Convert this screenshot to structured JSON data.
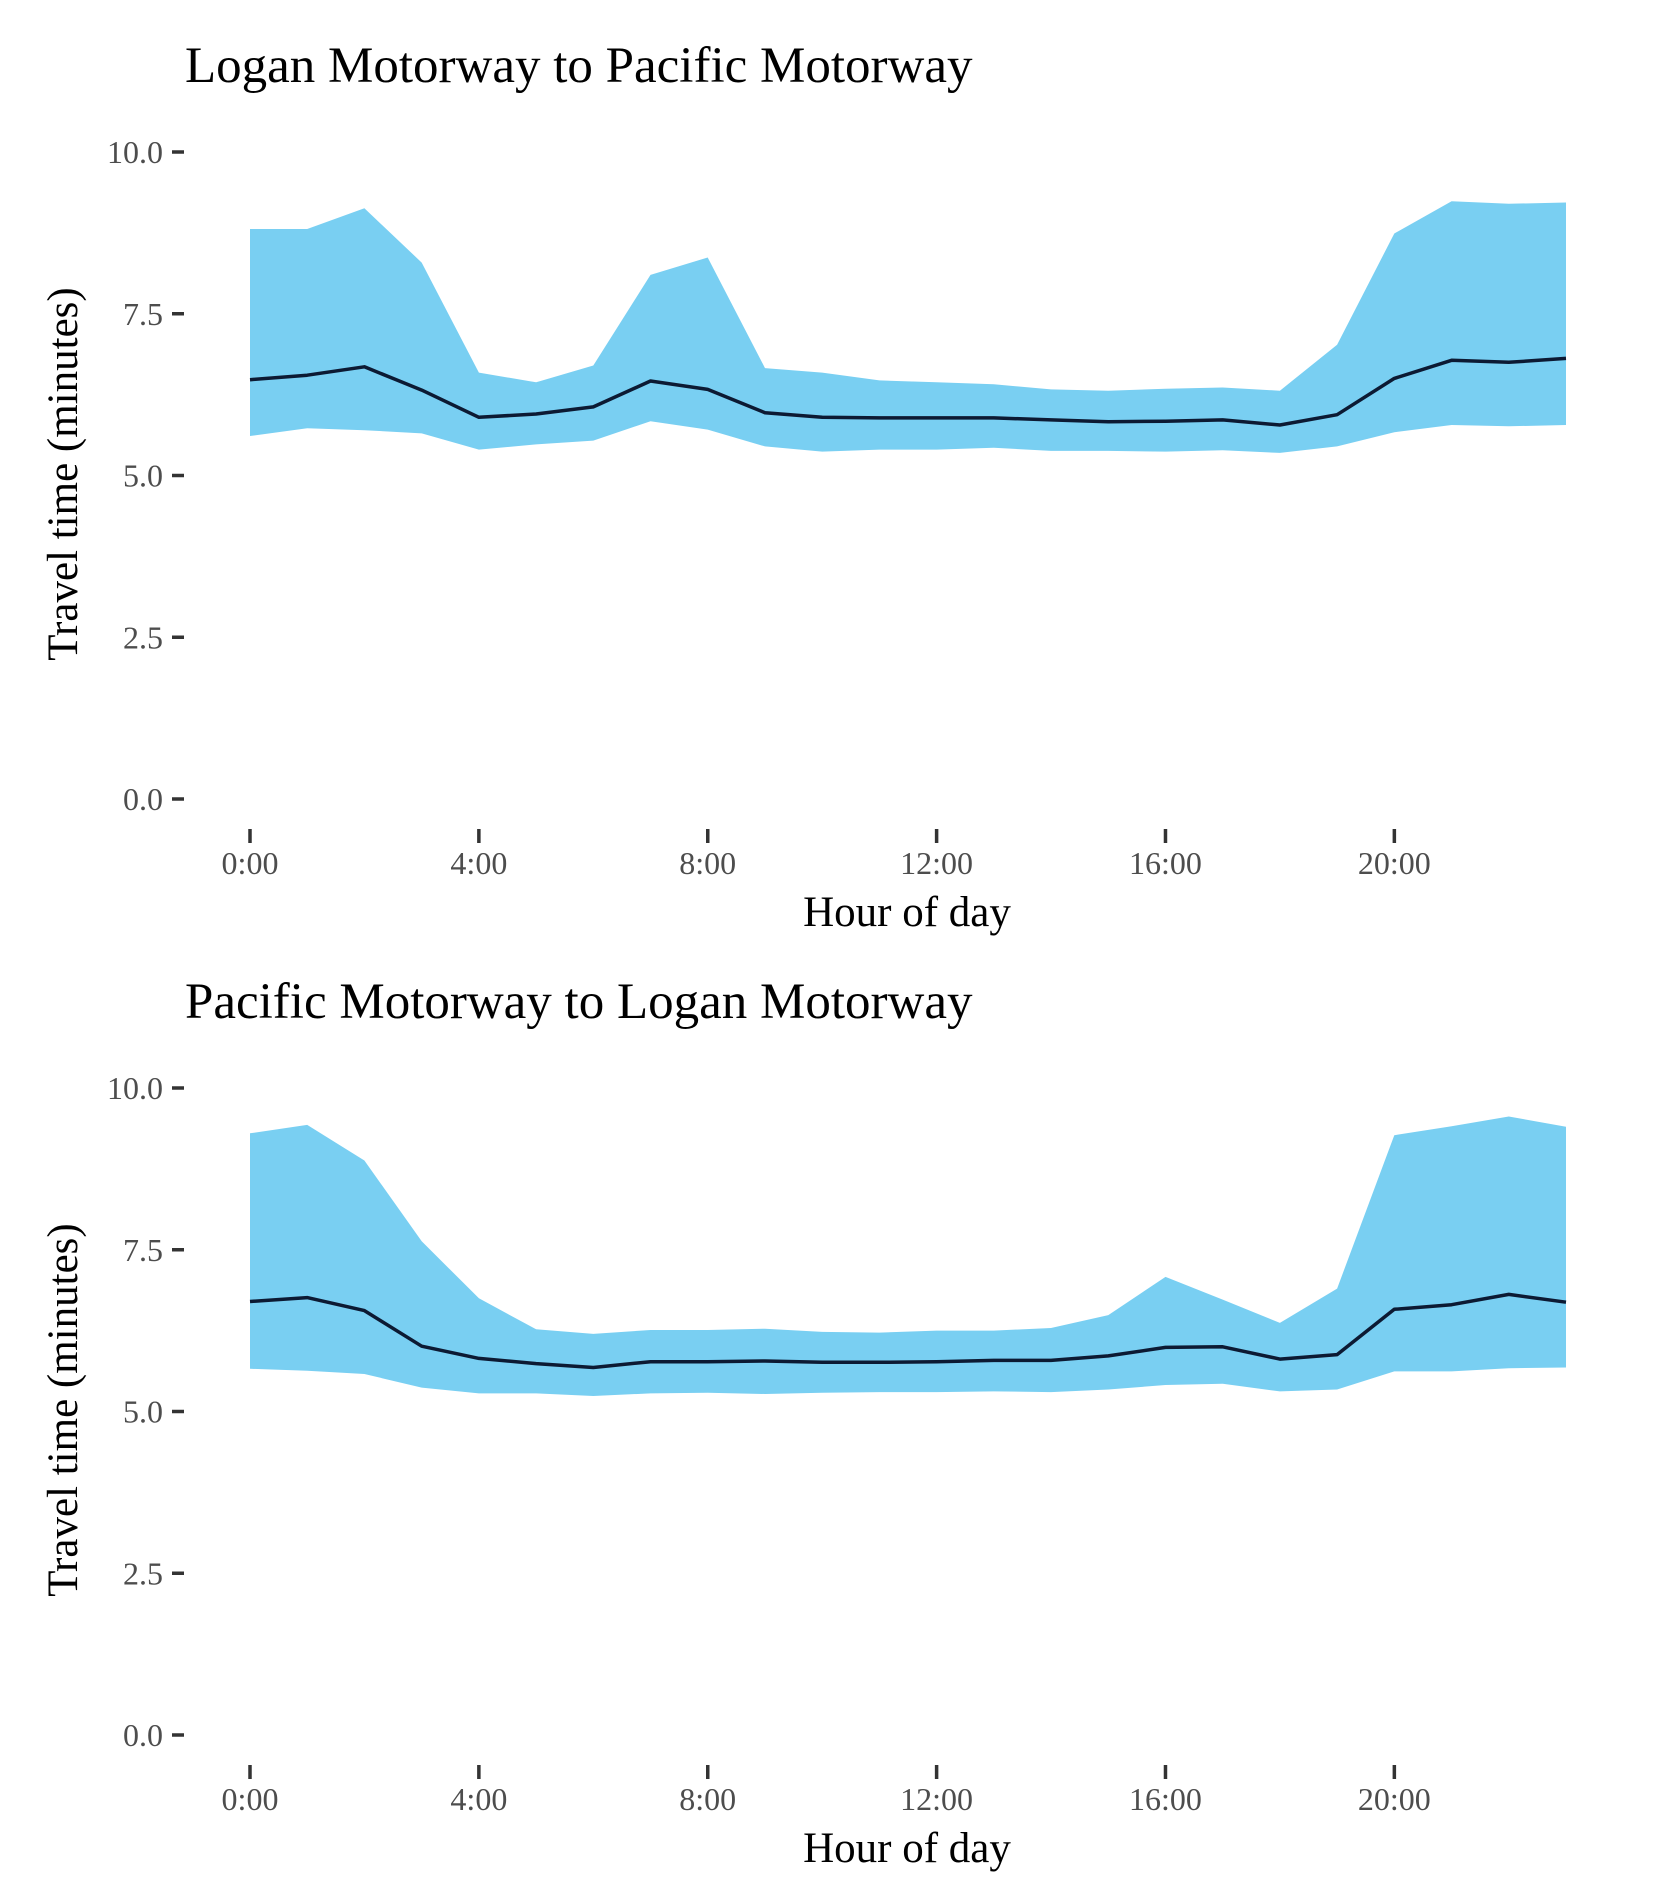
{
  "chart_data": [
    {
      "type": "area",
      "title": "Logan Motorway to Pacific Motorway",
      "xlabel": "Hour of day",
      "ylabel": "Travel time (minutes)",
      "x": [
        0,
        1,
        2,
        3,
        4,
        5,
        6,
        7,
        8,
        9,
        10,
        11,
        12,
        13,
        14,
        15,
        16,
        17,
        18,
        19,
        20,
        21,
        22,
        23
      ],
      "x_ticks": [
        0,
        4,
        8,
        12,
        16,
        20
      ],
      "x_tick_labels": [
        "0:00",
        "4:00",
        "8:00",
        "12:00",
        "16:00",
        "20:00"
      ],
      "y_ticks": [
        0,
        2.5,
        5,
        7.5,
        10
      ],
      "y_tick_labels": [
        "0.0",
        "2.5",
        "5.0",
        "7.5",
        "10.0"
      ],
      "xlim": [
        0,
        23
      ],
      "ylim": [
        0,
        10
      ],
      "grid": false,
      "colors": {
        "band": "#79cff2",
        "line": "#0c1a33"
      },
      "series": [
        {
          "kind": "band_upper",
          "values": [
            8.81,
            8.81,
            9.13,
            8.29,
            6.59,
            6.44,
            6.7,
            8.1,
            8.37,
            6.66,
            6.59,
            6.47,
            6.44,
            6.41,
            6.33,
            6.31,
            6.34,
            6.36,
            6.31,
            7.02,
            8.74,
            9.24,
            9.2,
            9.22
          ]
        },
        {
          "kind": "band_lower",
          "values": [
            5.61,
            5.73,
            5.7,
            5.65,
            5.4,
            5.48,
            5.54,
            5.84,
            5.71,
            5.45,
            5.37,
            5.4,
            5.4,
            5.43,
            5.38,
            5.38,
            5.37,
            5.39,
            5.35,
            5.45,
            5.67,
            5.78,
            5.76,
            5.78
          ]
        },
        {
          "kind": "median",
          "values": [
            6.48,
            6.55,
            6.68,
            6.32,
            5.9,
            5.95,
            6.06,
            6.46,
            6.33,
            5.97,
            5.9,
            5.89,
            5.89,
            5.89,
            5.86,
            5.83,
            5.84,
            5.86,
            5.78,
            5.94,
            6.5,
            6.78,
            6.75,
            6.81
          ]
        }
      ]
    },
    {
      "type": "area",
      "title": "Pacific Motorway to Logan Motorway",
      "xlabel": "Hour of day",
      "ylabel": "Travel time (minutes)",
      "x": [
        0,
        1,
        2,
        3,
        4,
        5,
        6,
        7,
        8,
        9,
        10,
        11,
        12,
        13,
        14,
        15,
        16,
        17,
        18,
        19,
        20,
        21,
        22,
        23
      ],
      "x_ticks": [
        0,
        4,
        8,
        12,
        16,
        20
      ],
      "x_tick_labels": [
        "0:00",
        "4:00",
        "8:00",
        "12:00",
        "16:00",
        "20:00"
      ],
      "y_ticks": [
        0,
        2.5,
        5,
        7.5,
        10
      ],
      "y_tick_labels": [
        "0.0",
        "2.5",
        "5.0",
        "7.5",
        "10.0"
      ],
      "xlim": [
        0,
        23
      ],
      "ylim": [
        0,
        10
      ],
      "grid": false,
      "colors": {
        "band": "#79cff2",
        "line": "#0c1a33"
      },
      "series": [
        {
          "kind": "band_upper",
          "values": [
            9.3,
            9.43,
            8.88,
            7.63,
            6.75,
            6.27,
            6.2,
            6.26,
            6.26,
            6.28,
            6.23,
            6.22,
            6.25,
            6.25,
            6.29,
            6.49,
            7.08,
            6.73,
            6.37,
            6.9,
            9.27,
            9.41,
            9.56,
            9.4
          ]
        },
        {
          "kind": "band_lower",
          "values": [
            5.66,
            5.63,
            5.58,
            5.37,
            5.28,
            5.28,
            5.24,
            5.28,
            5.29,
            5.27,
            5.29,
            5.3,
            5.3,
            5.31,
            5.3,
            5.34,
            5.41,
            5.43,
            5.31,
            5.34,
            5.62,
            5.62,
            5.67,
            5.68
          ]
        },
        {
          "kind": "median",
          "values": [
            6.7,
            6.76,
            6.56,
            6.01,
            5.82,
            5.74,
            5.68,
            5.77,
            5.77,
            5.78,
            5.76,
            5.76,
            5.77,
            5.79,
            5.79,
            5.86,
            5.99,
            6.0,
            5.81,
            5.88,
            6.58,
            6.65,
            6.81,
            6.69
          ]
        }
      ]
    }
  ]
}
